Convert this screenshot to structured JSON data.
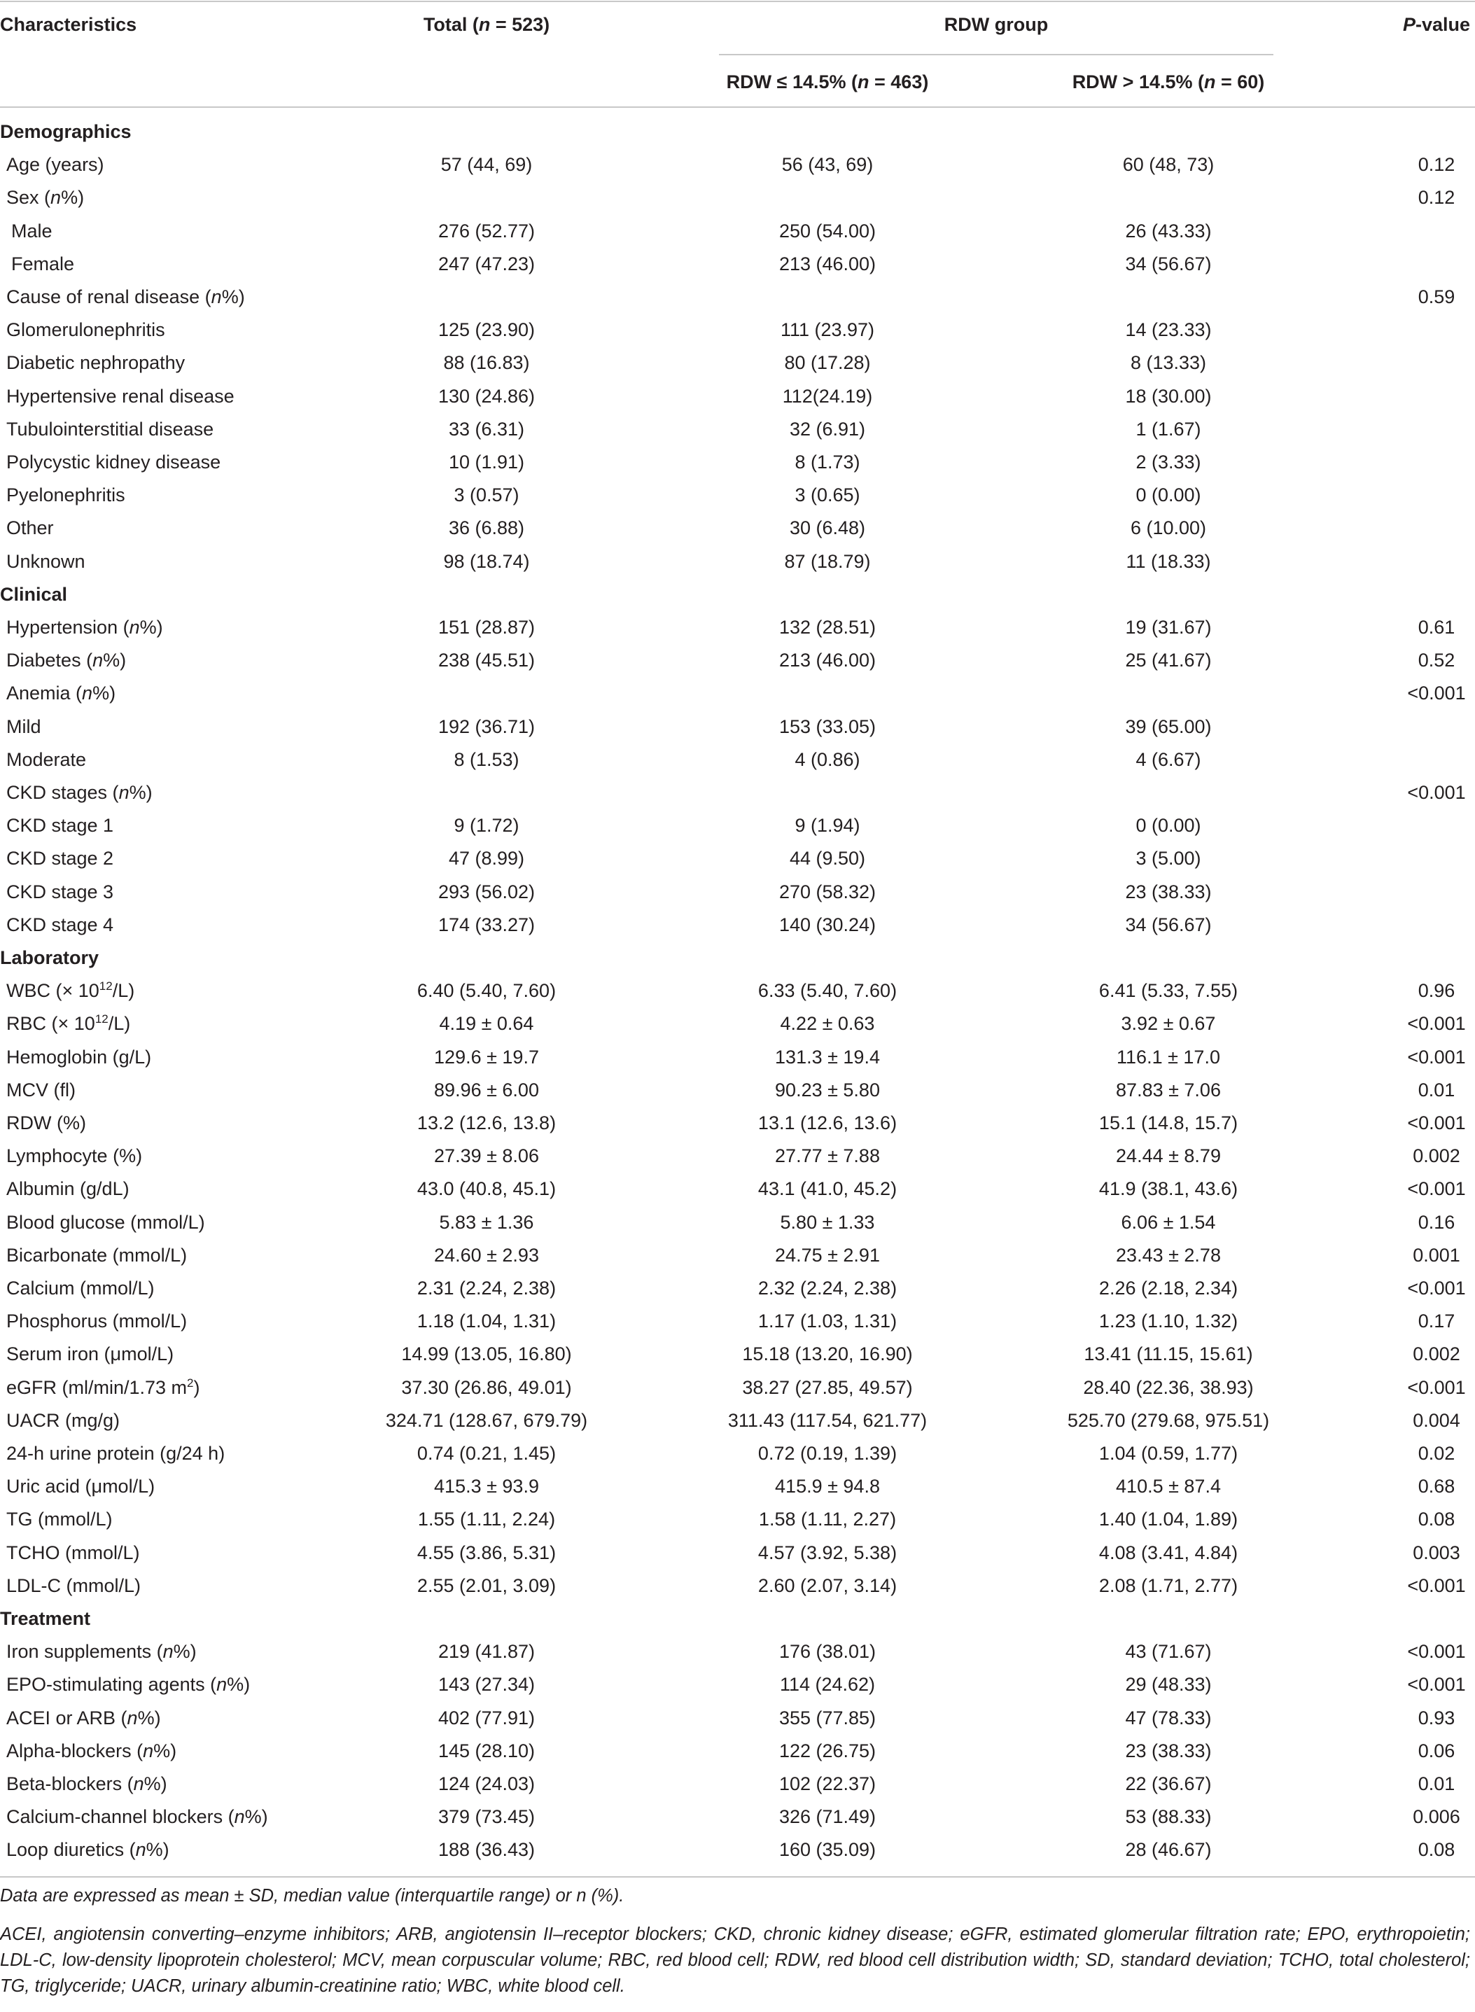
{
  "header": {
    "characteristics": "Characteristics",
    "total": [
      "Total (",
      {
        "i": "n"
      },
      " = 523)"
    ],
    "group": "RDW group",
    "low": [
      "RDW ≤ 14.5% (",
      {
        "i": "n"
      },
      " = 463)"
    ],
    "high": [
      "RDW > 14.5% (",
      {
        "i": "n"
      },
      " = 60)"
    ],
    "p": [
      {
        "i": "P"
      },
      "-value"
    ]
  },
  "rows": [
    {
      "section": "Demographics"
    },
    {
      "label": "Age (years)",
      "cells": [
        "57 (44, 69)",
        "56 (43, 69)",
        "60 (48, 73)",
        "0.12"
      ]
    },
    {
      "label": [
        "Sex (",
        {
          "i": "n"
        },
        "%)"
      ],
      "cells": [
        null,
        null,
        null,
        "0.12"
      ]
    },
    {
      "label": "Male",
      "indent": true,
      "cells": [
        "276 (52.77)",
        "250 (54.00)",
        "26 (43.33)",
        null
      ]
    },
    {
      "label": "Female",
      "indent": true,
      "cells": [
        "247 (47.23)",
        "213 (46.00)",
        "34 (56.67)",
        null
      ]
    },
    {
      "label": [
        "Cause of renal disease (",
        {
          "i": "n"
        },
        "%)"
      ],
      "cells": [
        null,
        null,
        null,
        "0.59"
      ]
    },
    {
      "label": "Glomerulonephritis",
      "cells": [
        "125 (23.90)",
        "111 (23.97)",
        "14 (23.33)",
        null
      ]
    },
    {
      "label": "Diabetic nephropathy",
      "cells": [
        "88 (16.83)",
        "80 (17.28)",
        "8 (13.33)",
        null
      ]
    },
    {
      "label": "Hypertensive renal disease",
      "cells": [
        "130 (24.86)",
        "112(24.19)",
        "18 (30.00)",
        null
      ]
    },
    {
      "label": "Tubulointerstitial disease",
      "cells": [
        "33 (6.31)",
        "32 (6.91)",
        "1 (1.67)",
        null
      ]
    },
    {
      "label": "Polycystic kidney disease",
      "cells": [
        "10 (1.91)",
        "8 (1.73)",
        "2 (3.33)",
        null
      ]
    },
    {
      "label": "Pyelonephritis",
      "cells": [
        "3 (0.57)",
        "3 (0.65)",
        "0 (0.00)",
        null
      ]
    },
    {
      "label": "Other",
      "cells": [
        "36 (6.88)",
        "30 (6.48)",
        "6 (10.00)",
        null
      ]
    },
    {
      "label": "Unknown",
      "cells": [
        "98 (18.74)",
        "87 (18.79)",
        "11 (18.33)",
        null
      ]
    },
    {
      "section": "Clinical"
    },
    {
      "label": [
        "Hypertension (",
        {
          "i": "n"
        },
        "%)"
      ],
      "cells": [
        "151 (28.87)",
        "132 (28.51)",
        "19 (31.67)",
        "0.61"
      ]
    },
    {
      "label": [
        "Diabetes (",
        {
          "i": "n"
        },
        "%)"
      ],
      "cells": [
        "238 (45.51)",
        "213 (46.00)",
        "25 (41.67)",
        "0.52"
      ]
    },
    {
      "label": [
        "Anemia (",
        {
          "i": "n"
        },
        "%)"
      ],
      "cells": [
        null,
        null,
        null,
        "<0.001"
      ]
    },
    {
      "label": "Mild",
      "cells": [
        "192 (36.71)",
        "153 (33.05)",
        "39 (65.00)",
        null
      ]
    },
    {
      "label": "Moderate",
      "cells": [
        "8 (1.53)",
        "4 (0.86)",
        "4 (6.67)",
        null
      ]
    },
    {
      "label": [
        "CKD stages (",
        {
          "i": "n"
        },
        "%)"
      ],
      "cells": [
        null,
        null,
        null,
        "<0.001"
      ]
    },
    {
      "label": "CKD stage 1",
      "cells": [
        "9 (1.72)",
        "9 (1.94)",
        "0 (0.00)",
        null
      ]
    },
    {
      "label": "CKD stage 2",
      "cells": [
        "47 (8.99)",
        "44 (9.50)",
        "3 (5.00)",
        null
      ]
    },
    {
      "label": "CKD stage 3",
      "cells": [
        "293 (56.02)",
        "270 (58.32)",
        "23 (38.33)",
        null
      ]
    },
    {
      "label": "CKD stage 4",
      "cells": [
        "174 (33.27)",
        "140 (30.24)",
        "34 (56.67)",
        null
      ]
    },
    {
      "section": "Laboratory"
    },
    {
      "label": [
        "WBC (× 10",
        {
          "sup": "12"
        },
        "/L)"
      ],
      "cells": [
        "6.40 (5.40, 7.60)",
        "6.33 (5.40, 7.60)",
        "6.41 (5.33, 7.55)",
        "0.96"
      ]
    },
    {
      "label": [
        "RBC (× 10",
        {
          "sup": "12"
        },
        "/L)"
      ],
      "cells": [
        "4.19 ± 0.64",
        "4.22 ± 0.63",
        "3.92 ± 0.67",
        "<0.001"
      ]
    },
    {
      "label": "Hemoglobin (g/L)",
      "cells": [
        "129.6 ± 19.7",
        "131.3 ± 19.4",
        "116.1 ± 17.0",
        "<0.001"
      ]
    },
    {
      "label": "MCV (fl)",
      "cells": [
        "89.96 ± 6.00",
        "90.23 ± 5.80",
        "87.83 ± 7.06",
        "0.01"
      ]
    },
    {
      "label": "RDW (%)",
      "cells": [
        "13.2 (12.6, 13.8)",
        "13.1 (12.6, 13.6)",
        "15.1 (14.8, 15.7)",
        "<0.001"
      ]
    },
    {
      "label": "Lymphocyte (%)",
      "cells": [
        "27.39 ± 8.06",
        "27.77 ± 7.88",
        "24.44 ± 8.79",
        "0.002"
      ]
    },
    {
      "label": "Albumin (g/dL)",
      "cells": [
        "43.0 (40.8, 45.1)",
        "43.1 (41.0, 45.2)",
        "41.9 (38.1, 43.6)",
        "<0.001"
      ]
    },
    {
      "label": "Blood glucose (mmol/L)",
      "cells": [
        "5.83 ± 1.36",
        "5.80 ± 1.33",
        "6.06 ± 1.54",
        "0.16"
      ]
    },
    {
      "label": "Bicarbonate (mmol/L)",
      "cells": [
        "24.60 ± 2.93",
        "24.75 ± 2.91",
        "23.43 ± 2.78",
        "0.001"
      ]
    },
    {
      "label": "Calcium (mmol/L)",
      "cells": [
        "2.31 (2.24, 2.38)",
        "2.32 (2.24, 2.38)",
        "2.26 (2.18, 2.34)",
        "<0.001"
      ]
    },
    {
      "label": "Phosphorus (mmol/L)",
      "cells": [
        "1.18 (1.04, 1.31)",
        "1.17 (1.03, 1.31)",
        "1.23 (1.10, 1.32)",
        "0.17"
      ]
    },
    {
      "label": "Serum iron (μmol/L)",
      "cells": [
        "14.99 (13.05, 16.80)",
        "15.18 (13.20, 16.90)",
        "13.41 (11.15, 15.61)",
        "0.002"
      ]
    },
    {
      "label": [
        "eGFR (ml/min/1.73 m",
        {
          "sup": "2"
        },
        ")"
      ],
      "cells": [
        "37.30 (26.86, 49.01)",
        "38.27 (27.85, 49.57)",
        "28.40 (22.36, 38.93)",
        "<0.001"
      ]
    },
    {
      "label": "UACR (mg/g)",
      "cells": [
        "324.71 (128.67, 679.79)",
        "311.43 (117.54, 621.77)",
        "525.70 (279.68, 975.51)",
        "0.004"
      ]
    },
    {
      "label": "24-h urine protein (g/24 h)",
      "cells": [
        "0.74 (0.21, 1.45)",
        "0.72 (0.19, 1.39)",
        "1.04 (0.59, 1.77)",
        "0.02"
      ]
    },
    {
      "label": "Uric acid (μmol/L)",
      "cells": [
        "415.3 ± 93.9",
        "415.9 ± 94.8",
        "410.5 ± 87.4",
        "0.68"
      ]
    },
    {
      "label": "TG (mmol/L)",
      "cells": [
        "1.55 (1.11, 2.24)",
        "1.58 (1.11, 2.27)",
        "1.40 (1.04, 1.89)",
        "0.08"
      ]
    },
    {
      "label": "TCHO (mmol/L)",
      "cells": [
        "4.55 (3.86, 5.31)",
        "4.57 (3.92, 5.38)",
        "4.08 (3.41, 4.84)",
        "0.003"
      ]
    },
    {
      "label": "LDL-C (mmol/L)",
      "cells": [
        "2.55 (2.01, 3.09)",
        "2.60 (2.07, 3.14)",
        "2.08 (1.71, 2.77)",
        "<0.001"
      ]
    },
    {
      "section": "Treatment"
    },
    {
      "label": [
        "Iron supplements (",
        {
          "i": "n"
        },
        "%)"
      ],
      "cells": [
        "219 (41.87)",
        "176 (38.01)",
        "43 (71.67)",
        "<0.001"
      ]
    },
    {
      "label": [
        "EPO-stimulating agents (",
        {
          "i": "n"
        },
        "%)"
      ],
      "cells": [
        "143 (27.34)",
        "114 (24.62)",
        "29 (48.33)",
        "<0.001"
      ]
    },
    {
      "label": [
        "ACEI or ARB (",
        {
          "i": "n"
        },
        "%)"
      ],
      "cells": [
        "402 (77.91)",
        "355 (77.85)",
        "47 (78.33)",
        "0.93"
      ]
    },
    {
      "label": [
        "Alpha-blockers (",
        {
          "i": "n"
        },
        "%)"
      ],
      "cells": [
        "145 (28.10)",
        "122 (26.75)",
        "23 (38.33)",
        "0.06"
      ]
    },
    {
      "label": [
        "Beta-blockers (",
        {
          "i": "n"
        },
        "%)"
      ],
      "cells": [
        "124 (24.03)",
        "102 (22.37)",
        "22 (36.67)",
        "0.01"
      ]
    },
    {
      "label": [
        "Calcium-channel blockers (",
        {
          "i": "n"
        },
        "%)"
      ],
      "cells": [
        "379 (73.45)",
        "326 (71.49)",
        "53 (88.33)",
        "0.006"
      ]
    },
    {
      "label": [
        "Loop diuretics (",
        {
          "i": "n"
        },
        "%)"
      ],
      "cells": [
        "188 (36.43)",
        "160 (35.09)",
        "28 (46.67)",
        "0.08"
      ]
    }
  ],
  "notes": [
    "Data are expressed as mean ± SD, median value (interquartile range) or n (%).",
    "ACEI, angiotensin converting–enzyme inhibitors; ARB, angiotensin II–receptor blockers; CKD, chronic kidney disease; eGFR, estimated glomerular filtration rate; EPO, erythropoietin; LDL-C, low-density lipoprotein cholesterol; MCV, mean corpuscular volume; RBC, red blood cell; RDW, red blood cell distribution width; SD, standard deviation; TCHO, total cholesterol; TG, triglyceride; UACR, urinary albumin-creatinine ratio; WBC, white blood cell."
  ]
}
